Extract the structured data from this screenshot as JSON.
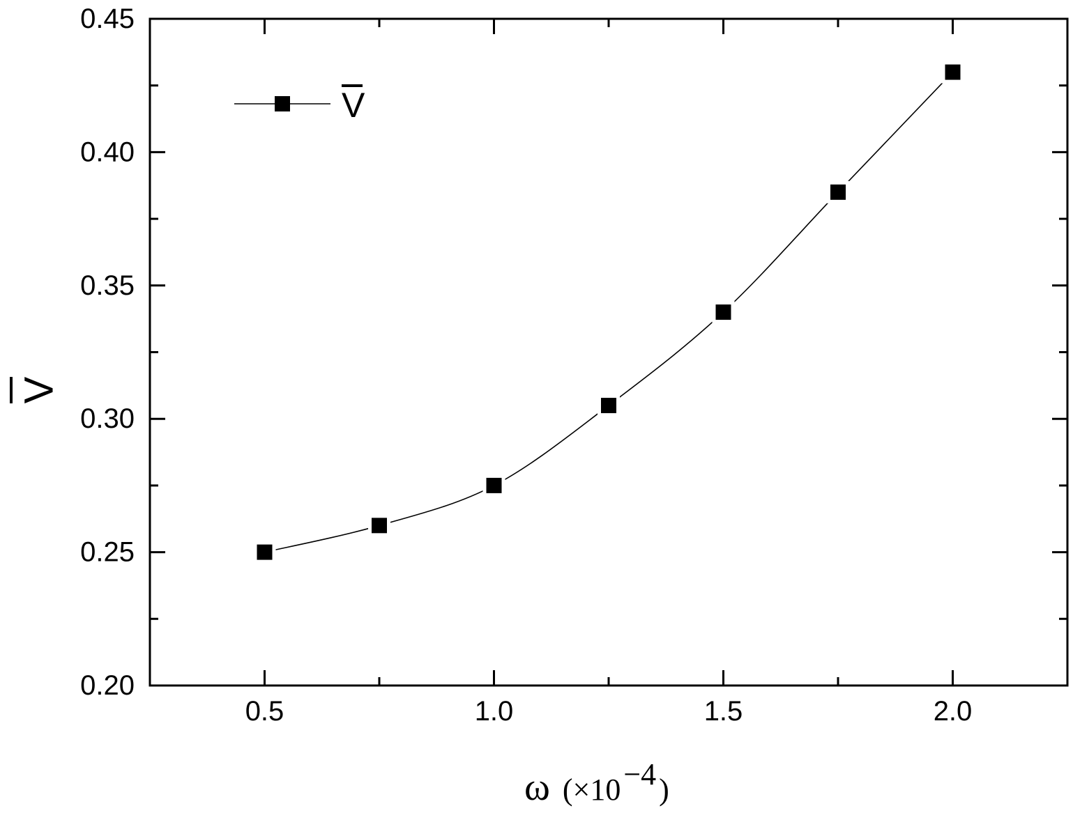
{
  "chart_data": {
    "type": "line",
    "x": [
      0.5,
      0.75,
      1.0,
      1.25,
      1.5,
      1.75,
      2.0
    ],
    "series": [
      {
        "name": "V",
        "values": [
          0.25,
          0.26,
          0.275,
          0.305,
          0.34,
          0.385,
          0.43
        ]
      }
    ],
    "xlabel": "ω",
    "xlabel_unit": "(×10",
    "xlabel_exponent": "−4",
    "xlabel_close": ")",
    "ylabel": "V",
    "xlim": [
      0.25,
      2.25
    ],
    "ylim": [
      0.2,
      0.45
    ],
    "xticks": [
      "0.5",
      "1.0",
      "1.5",
      "2.0"
    ],
    "yticks": [
      "0.20",
      "0.25",
      "0.30",
      "0.35",
      "0.40",
      "0.45"
    ],
    "legend": {
      "position": "top-left",
      "label": "V",
      "overline": true
    },
    "marker": "filled-square",
    "line_style": "smooth",
    "grid": false,
    "colors": {
      "line": "#000000",
      "marker": "#000000",
      "axes": "#000000"
    }
  }
}
